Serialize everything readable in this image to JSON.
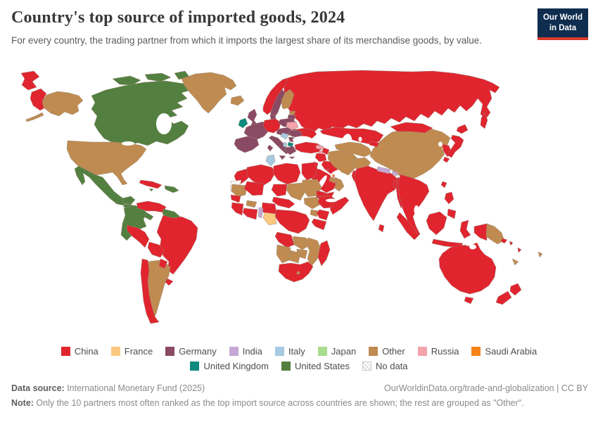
{
  "header": {
    "title": "Country's top source of imported goods, 2024",
    "subtitle": "For every country, the trading partner from which it imports the largest share of its merchandise goods, by value.",
    "logo": {
      "line1": "Our World",
      "line2": "in Data",
      "bg": "#0f2d4e",
      "accent": "#d93a2b"
    }
  },
  "map": {
    "ocean": "#ffffff",
    "border_color": "#9b8a7c",
    "colors": {
      "China": "#e0252f",
      "France": "#fbc87f",
      "Germany": "#8b4a63",
      "India": "#c5a8d4",
      "Italy": "#a5cae2",
      "Japan": "#a8dc8e",
      "Other": "#bf8b51",
      "Russia": "#f4a2ac",
      "Saudi Arabia": "#f7821a",
      "United Kingdom": "#0e8a80",
      "United States": "#538040",
      "No data": "#ffffff"
    }
  },
  "legend": {
    "rows": [
      [
        "China",
        "France",
        "Germany",
        "India",
        "Italy",
        "Japan",
        "Other",
        "Russia",
        "Saudi Arabia"
      ],
      [
        "United Kingdom",
        "United States",
        "No data"
      ]
    ]
  },
  "footer": {
    "datasource_label": "Data source:",
    "datasource_value": " International Monetary Fund (2025)",
    "link": "OurWorldinData.org/trade-and-globalization | CC BY",
    "note_label": "Note:",
    "note_value": " Only the 10 partners most often ranked as the top import source across countries are shown; the rest are grouped as \"Other\"."
  },
  "chart_data": {
    "type": "heatmap",
    "subtype": "choropleth-world-map",
    "title": "Country's top source of imported goods, 2024",
    "legend_entries": [
      "China",
      "France",
      "Germany",
      "India",
      "Italy",
      "Japan",
      "Other",
      "Russia",
      "Saudi Arabia",
      "United Kingdom",
      "United States",
      "No data"
    ],
    "region_values": {
      "chukotka": "China",
      "alaska": "Other",
      "canada": "United States",
      "greenland": "Other",
      "iceland": "Other",
      "united-states": "Other",
      "mexico": "United States",
      "central-america": "United States",
      "cuba": "China",
      "jamaica": "United States",
      "hispaniola": "United States",
      "colombia-ecuador": "United States",
      "venezuela": "China",
      "guyana-suriname": "United States",
      "brazil": "China",
      "peru": "China",
      "bolivia": "China",
      "argentina": "Other",
      "chile": "China",
      "paraguay": "China",
      "uruguay": "China",
      "russia": "China",
      "kazakhstan": "China",
      "mongolia": "China",
      "norway": "China",
      "sweden": "Germany",
      "finland": "Other",
      "estonia": "Other",
      "latvia-lithuania": "Germany",
      "denmark": "Germany",
      "united-kingdom": "Germany",
      "ireland": "United Kingdom",
      "france": "Germany",
      "germany": "China",
      "poland": "Germany",
      "central-europe": "Germany",
      "spain-portugal": "Germany",
      "italy": "Germany",
      "romania": "Germany",
      "serbia-bulgaria": "Germany",
      "croatia": "Italy",
      "albania": "Italy",
      "north-macedonia": "United Kingdom",
      "greece": "Germany",
      "belarus": "Russia",
      "ukraine": "China",
      "morocco": "China",
      "western-sahara": "No data",
      "mauritania": "Other",
      "algeria": "China",
      "tunisia": "Italy",
      "libya": "China",
      "egypt": "China",
      "mali": "China",
      "niger": "China",
      "chad": "Other",
      "sudan": "Other",
      "south-sudan": "Other",
      "senegal": "China",
      "guinea": "China",
      "cote-divoire-ghana": "China",
      "burkina-faso": "Other",
      "benin": "India",
      "nigeria": "China",
      "cameroon": "China",
      "gabon": "France",
      "congo-drc": "China",
      "uganda": "Other",
      "kenya": "China",
      "eritrea": "China",
      "ethiopia": "China",
      "somalia": "China",
      "tanzania": "China",
      "angola": "China",
      "zambia": "Other",
      "mozambique": "Other",
      "zimbabwe": "Other",
      "namibia": "Other",
      "botswana": "Other",
      "south-africa": "China",
      "lesotho": "Other",
      "madagascar": "China",
      "turkey": "China",
      "georgia": "Russia",
      "armenia": "Russia",
      "azerbaijan": "China",
      "syria": "China",
      "jordan-israel": "China",
      "iraq": "China",
      "saudi-arabia": "China",
      "yemen": "China",
      "oman": "Other",
      "uae": "Other",
      "kuwait": "China",
      "bahrain": "Saudi Arabia",
      "iran": "Other",
      "turkmenistan-uzbekistan": "Other",
      "afghanistan": "Other",
      "kyrgyzstan": "China",
      "pakistan": "China",
      "india": "China",
      "nepal": "India",
      "bhutan": "India",
      "bangladesh": "China",
      "sri-lanka": "China",
      "myanmar": "China",
      "china": "Other",
      "south-korea": "China",
      "japan": "China",
      "taiwan": "China",
      "indochina": "China",
      "philippines": "China",
      "indonesia": "China",
      "papua-new-guinea": "Other",
      "timor": "China",
      "australia": "China",
      "new-zealand": "China",
      "new-caledonia": "Other",
      "fiji": "Other",
      "solomon-islands": "China",
      "vanuatu": "China"
    }
  }
}
